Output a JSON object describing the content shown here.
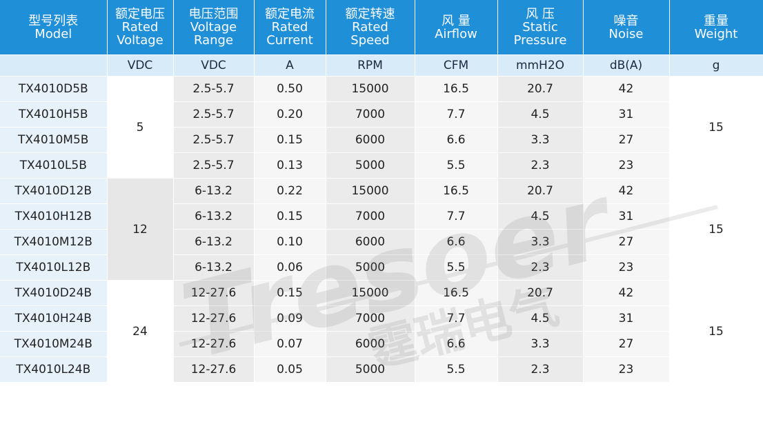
{
  "headers": [
    {
      "cn": "型号列表",
      "en": "Model",
      "unit": ""
    },
    {
      "cn": "额定电压",
      "en": "Rated Voltage",
      "unit": "VDC"
    },
    {
      "cn": "电压范围",
      "en": "Voltage Range",
      "unit": "VDC"
    },
    {
      "cn": "额定电流",
      "en": "Rated Current",
      "unit": "A"
    },
    {
      "cn": "额定转速",
      "en": "Rated Speed",
      "unit": "RPM"
    },
    {
      "cn": "风 量",
      "en": "Airflow",
      "unit": "CFM"
    },
    {
      "cn": "风 压",
      "en": "Static Pressure",
      "unit": "mmH2O"
    },
    {
      "cn": "噪音",
      "en": "Noise",
      "unit": "dB(A)"
    },
    {
      "cn": "重量",
      "en": "Weight",
      "unit": "g"
    }
  ],
  "header_lines": [
    [
      "型号列表",
      "Model"
    ],
    [
      "额定电压",
      "Rated",
      "Voltage"
    ],
    [
      "电压范围",
      "Voltage",
      "Range"
    ],
    [
      "额定电流",
      "Rated",
      "Current"
    ],
    [
      "额定转速",
      "Rated",
      "Speed"
    ],
    [
      "风 量",
      "Airflow"
    ],
    [
      "风 压",
      "Static",
      "Pressure"
    ],
    [
      "噪音",
      "Noise"
    ],
    [
      "重量",
      "Weight"
    ]
  ],
  "groups": [
    {
      "rated_voltage": "5",
      "weight": "15",
      "rows": [
        {
          "model": "TX4010D5B",
          "range": "2.5-5.7",
          "current": "0.50",
          "speed": "15000",
          "airflow": "16.5",
          "pressure": "20.7",
          "noise": "42"
        },
        {
          "model": "TX4010H5B",
          "range": "2.5-5.7",
          "current": "0.20",
          "speed": "7000",
          "airflow": "7.7",
          "pressure": "4.5",
          "noise": "31"
        },
        {
          "model": "TX4010M5B",
          "range": "2.5-5.7",
          "current": "0.15",
          "speed": "6000",
          "airflow": "6.6",
          "pressure": "3.3",
          "noise": "27"
        },
        {
          "model": "TX4010L5B",
          "range": "2.5-5.7",
          "current": "0.13",
          "speed": "5000",
          "airflow": "5.5",
          "pressure": "2.3",
          "noise": "23"
        }
      ]
    },
    {
      "rated_voltage": "12",
      "weight": "15",
      "rows": [
        {
          "model": "TX4010D12B",
          "range": "6-13.2",
          "current": "0.22",
          "speed": "15000",
          "airflow": "16.5",
          "pressure": "20.7",
          "noise": "42"
        },
        {
          "model": "TX4010H12B",
          "range": "6-13.2",
          "current": "0.15",
          "speed": "7000",
          "airflow": "7.7",
          "pressure": "4.5",
          "noise": "31"
        },
        {
          "model": "TX4010M12B",
          "range": "6-13.2",
          "current": "0.10",
          "speed": "6000",
          "airflow": "6.6",
          "pressure": "3.3",
          "noise": "27"
        },
        {
          "model": "TX4010L12B",
          "range": "6-13.2",
          "current": "0.06",
          "speed": "5000",
          "airflow": "5.5",
          "pressure": "2.3",
          "noise": "23"
        }
      ]
    },
    {
      "rated_voltage": "24",
      "weight": "15",
      "rows": [
        {
          "model": "TX4010D24B",
          "range": "12-27.6",
          "current": "0.15",
          "speed": "15000",
          "airflow": "16.5",
          "pressure": "20.7",
          "noise": "42"
        },
        {
          "model": "TX4010H24B",
          "range": "12-27.6",
          "current": "0.09",
          "speed": "7000",
          "airflow": "7.7",
          "pressure": "4.5",
          "noise": "31"
        },
        {
          "model": "TX4010M24B",
          "range": "12-27.6",
          "current": "0.07",
          "speed": "6000",
          "airflow": "6.6",
          "pressure": "3.3",
          "noise": "27"
        },
        {
          "model": "TX4010L24B",
          "range": "12-27.6",
          "current": "0.05",
          "speed": "5000",
          "airflow": "5.5",
          "pressure": "2.3",
          "noise": "23"
        }
      ]
    }
  ],
  "watermark": {
    "text": "Tresoer",
    "cn_text": "霆瑞电气"
  },
  "colors": {
    "header_bg": "#1f8fd8",
    "unit_bg": "#d8ebf8",
    "model_bg": "#e6f1fa"
  }
}
